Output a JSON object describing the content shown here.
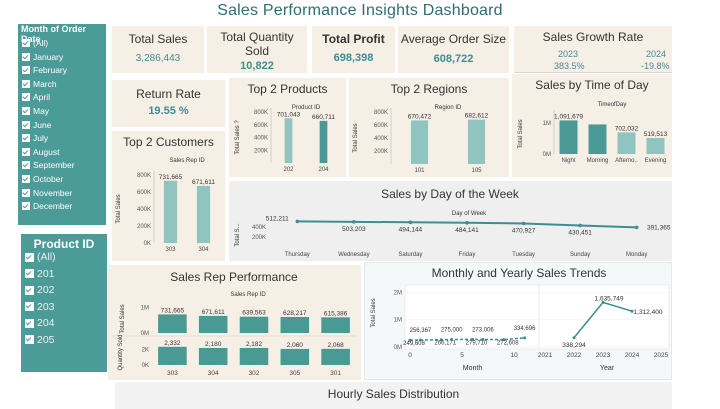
{
  "dashboard": {
    "title": "Sales Performance Insights Dashboard"
  },
  "kpis": {
    "total_sales": {
      "label": "Total Sales",
      "value": "3,286,443"
    },
    "total_quantity": {
      "label": "Total Quantity Sold",
      "label_line1": "Total Quantity",
      "label_line2": "Sold",
      "value": "10,822"
    },
    "total_profit": {
      "label": "Total Profit",
      "value": "698,398"
    },
    "avg_order": {
      "label": "Average Order Size",
      "value": "608,722"
    },
    "growth": {
      "label": "Sales Growth Rate",
      "year1": "2023",
      "year2": "2024",
      "rate1": "383.5%",
      "rate2": "-19.8%"
    },
    "return_rate": {
      "label": "Return Rate",
      "value": "19.55 %"
    }
  },
  "filters": {
    "month": {
      "title": "Month of Order Date",
      "items": [
        "(All)",
        "January",
        "February",
        "March",
        "April",
        "May",
        "June",
        "July",
        "August",
        "September",
        "October",
        "November",
        "December"
      ]
    },
    "product": {
      "title": "Product ID",
      "items": [
        "(All)",
        "201",
        "202",
        "203",
        "204",
        "205"
      ]
    }
  },
  "colors": {
    "teal": "#3f8c93",
    "teal_light": "#8fc4c0",
    "teal_bar": "#4a9994",
    "card": "#f6efe6",
    "filter": "#4b9c98"
  },
  "chart_data": [
    {
      "id": "top_products",
      "type": "bar",
      "title": "Top 2 Products",
      "header": "Product ID",
      "ylabel": "Total Sales",
      "ylabel_display": "Total Sales ?",
      "categories": [
        "202",
        "204"
      ],
      "values": [
        701043,
        660711
      ],
      "labels": [
        "701,043",
        "660,711"
      ],
      "yticks": [
        "200K",
        "400K",
        "600K",
        "800K"
      ],
      "ylim": [
        0,
        800000
      ]
    },
    {
      "id": "top_regions",
      "type": "bar",
      "title": "Top 2 Regions",
      "header": "Region ID",
      "ylabel": "Total Sales",
      "categories": [
        "101",
        "105"
      ],
      "values": [
        670472,
        682612
      ],
      "labels": [
        "670,472",
        "682,612"
      ],
      "yticks": [
        "200K",
        "400K",
        "600K",
        "800K"
      ],
      "ylim": [
        0,
        800000
      ]
    },
    {
      "id": "time_of_day",
      "type": "bar",
      "title": "Sales by Time of Day",
      "header": "TimeofDay",
      "ylabel": "Total Sales",
      "categories": [
        "Night",
        "Morning",
        "Afterno..",
        "Evening"
      ],
      "values": [
        1091679,
        961000,
        702032,
        519513
      ],
      "labels": [
        "1,091,679",
        "",
        "702,032",
        "519,513"
      ],
      "yticks": [
        "0M",
        "1M"
      ],
      "ylim": [
        0,
        1300000
      ]
    },
    {
      "id": "top_customers",
      "type": "bar",
      "title": "Top 2 Customers",
      "header": "Sales Rep ID",
      "ylabel": "Total Sales",
      "categories": [
        "303",
        "304"
      ],
      "values": [
        731665,
        671611
      ],
      "labels": [
        "731,665",
        "671,611"
      ],
      "yticks": [
        "0K",
        "200K",
        "400K",
        "600K",
        "800K"
      ],
      "ylim": [
        0,
        800000
      ]
    },
    {
      "id": "day_of_week",
      "type": "line",
      "title": "Sales by Day of the Week",
      "header": "Day of Week",
      "ylabel": "Total S...",
      "categories": [
        "Thursday",
        "Wednesday",
        "Saturday",
        "Friday",
        "Tuesday",
        "Sunday",
        "Monday"
      ],
      "values": [
        512211,
        503203,
        494144,
        484141,
        470927,
        430451,
        391365
      ],
      "labels": [
        "512,211",
        "503,203",
        "494,144",
        "484,141",
        "470,927",
        "430,451",
        "391,365"
      ],
      "yticks": [
        "200K",
        "400K"
      ],
      "ylim": [
        0,
        600000
      ]
    },
    {
      "id": "sales_rep",
      "type": "bar",
      "title": "Sales Rep Performance",
      "header": "Sales Rep ID",
      "categories": [
        "303",
        "304",
        "302",
        "305",
        "301"
      ],
      "series": [
        {
          "name": "Total Sales",
          "values": [
            731665,
            671611,
            639563,
            628217,
            615386
          ],
          "labels": [
            "731,665",
            "671,611",
            "639,563",
            "628,217",
            "615,386"
          ],
          "yticks": [
            "0M",
            "1M"
          ],
          "ylim": [
            0,
            1100000
          ]
        },
        {
          "name": "Quantity Sold",
          "values": [
            2332,
            2180,
            2182,
            2060,
            2068
          ],
          "labels": [
            "2,332",
            "2,180",
            "2,182",
            "2,060",
            "2,068"
          ],
          "yticks": [
            "0K",
            "2K"
          ],
          "ylim": [
            0,
            3200
          ]
        }
      ]
    },
    {
      "id": "monthly_yearly",
      "type": "line",
      "title": "Monthly and Yearly Sales Trends",
      "ylabel": "Total Sales",
      "month_axis": {
        "xlabel": "Month",
        "ticks": [
          "0",
          "5",
          "10"
        ],
        "xlim": [
          0,
          12
        ]
      },
      "year_axis": {
        "xlabel": "Year",
        "ticks": [
          "2021",
          "2022",
          "2023",
          "2024",
          "2025"
        ],
        "xlim": [
          2021,
          2025
        ]
      },
      "yticks": [
        "0M",
        "1M",
        "2M"
      ],
      "ylim": [
        0,
        2200000
      ],
      "monthly_points": [
        {
          "x": 0,
          "y": 249608,
          "label": "249,608"
        },
        {
          "x": 1,
          "y": 256367,
          "label": "256,367"
        },
        {
          "x": 3,
          "y": 266171,
          "label": "266,171"
        },
        {
          "x": 4,
          "y": 275000,
          "label": "275,000"
        },
        {
          "x": 6,
          "y": 279710,
          "label": "279,710"
        },
        {
          "x": 7,
          "y": 273006,
          "label": "273,006"
        },
        {
          "x": 9,
          "y": 272608,
          "label": "272,608"
        },
        {
          "x": 11,
          "y": 334696,
          "label": "334,696"
        }
      ],
      "yearly_points": [
        {
          "x": 2022,
          "y": 338294,
          "label": "338,294"
        },
        {
          "x": 2023,
          "y": 1635749,
          "label": "1,635,749"
        },
        {
          "x": 2024,
          "y": 1312400,
          "label": "1,312,400"
        }
      ]
    },
    {
      "id": "hourly",
      "type": "bar",
      "title": "Hourly Sales Distribution",
      "values": []
    }
  ]
}
